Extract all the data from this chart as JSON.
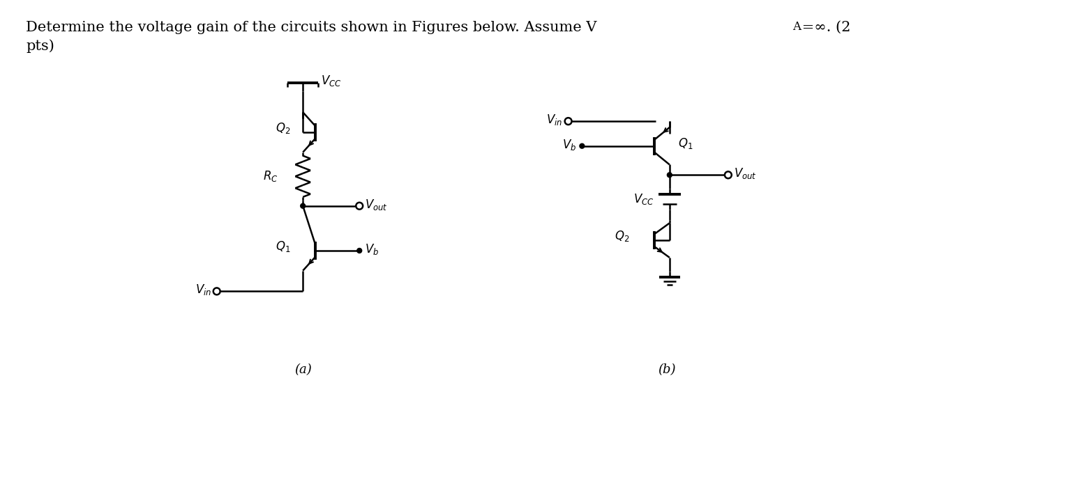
{
  "background_color": "#ffffff",
  "line_color": "#000000",
  "fig_width": 15.64,
  "fig_height": 6.98,
  "title_main": "Determine the voltage gain of the circuits shown in Figures below. Assume V",
  "title_sub": "A",
  "title_end": " =∞. (2",
  "title_line2": "pts)",
  "label_a": "(a)",
  "label_b": "(b)",
  "font_size_title": 15,
  "font_size_label": 12,
  "font_size_caption": 13
}
